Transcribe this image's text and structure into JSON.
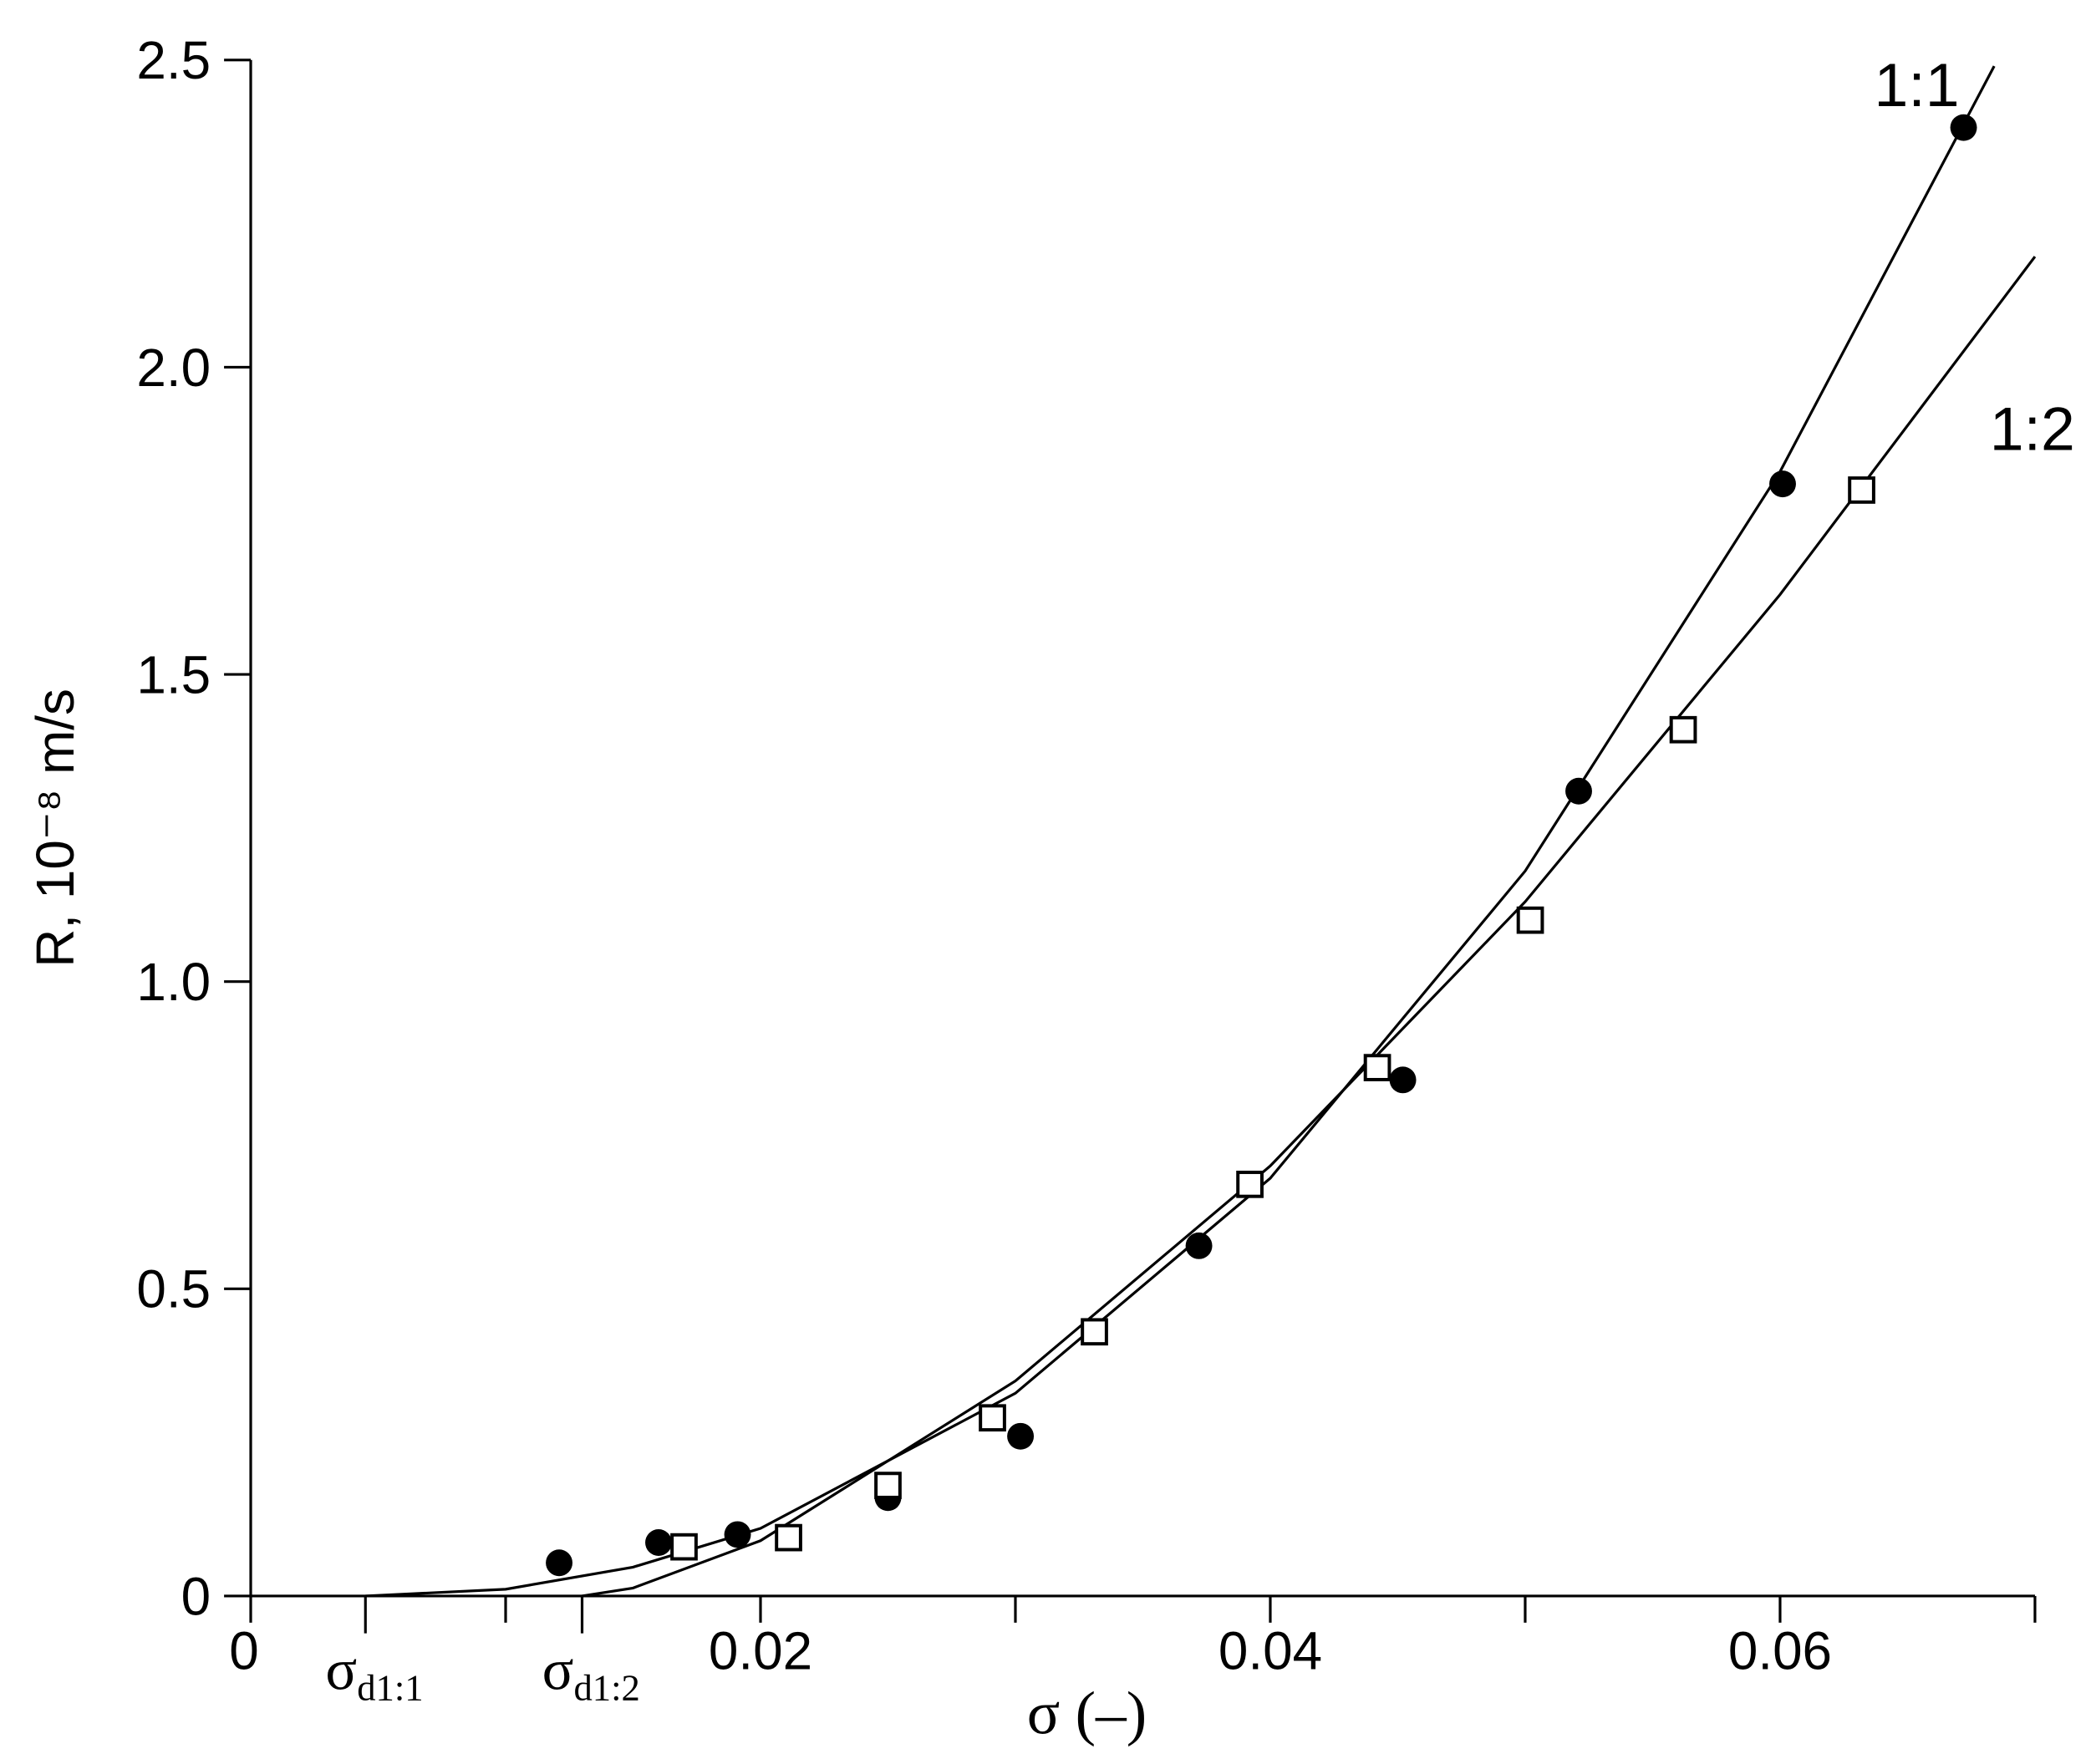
{
  "chart_data": {
    "type": "scatter",
    "x_label": "σ (–)",
    "y_label": "R, 10⁻⁸ m/s",
    "xlim": [
      0,
      0.07
    ],
    "ylim": [
      0,
      2.5
    ],
    "xticks": [
      0,
      0.02,
      0.04,
      0.06
    ],
    "x_minor_ticks": [
      0.01,
      0.03,
      0.05,
      0.07
    ],
    "yticks": [
      0,
      0.5,
      {
        "value": 1,
        "label": "1.0"
      },
      1.5,
      {
        "value": 2,
        "label": "2.0"
      },
      2.5
    ],
    "annotations": [
      {
        "x": 0.0045,
        "symbol": "σ",
        "subscript": "d1:1"
      },
      {
        "x": 0.013,
        "symbol": "σ",
        "subscript": "d1:2"
      }
    ],
    "series": [
      {
        "name": "1:1",
        "marker": "filled-circle",
        "color": "#000000",
        "x": [
          0.0121,
          0.016,
          0.0191,
          0.025,
          0.0302,
          0.0372,
          0.0452,
          0.0521,
          0.0601,
          0.0672
        ],
        "values": [
          0.054,
          0.087,
          0.1,
          0.16,
          0.26,
          0.57,
          0.84,
          1.31,
          1.81,
          2.39
        ],
        "fit_x": [
          0.0045,
          0.01,
          0.015,
          0.02,
          0.03,
          0.04,
          0.05,
          0.06,
          0.0684
        ],
        "fit_values": [
          0,
          0.011,
          0.047,
          0.11,
          0.33,
          0.68,
          1.18,
          1.83,
          2.49
        ]
      },
      {
        "name": "1:2",
        "marker": "open-square",
        "color": "#000000",
        "x": [
          0.017,
          0.0211,
          0.025,
          0.0291,
          0.0331,
          0.0392,
          0.0442,
          0.0502,
          0.0562,
          0.0632
        ],
        "values": [
          0.08,
          0.095,
          0.18,
          0.29,
          0.43,
          0.67,
          0.86,
          1.1,
          1.41,
          1.8
        ],
        "fit_x": [
          0.013,
          0.015,
          0.02,
          0.03,
          0.04,
          0.05,
          0.06,
          0.07
        ],
        "fit_values": [
          0,
          0.013,
          0.09,
          0.35,
          0.7,
          1.13,
          1.63,
          2.18
        ]
      }
    ]
  }
}
